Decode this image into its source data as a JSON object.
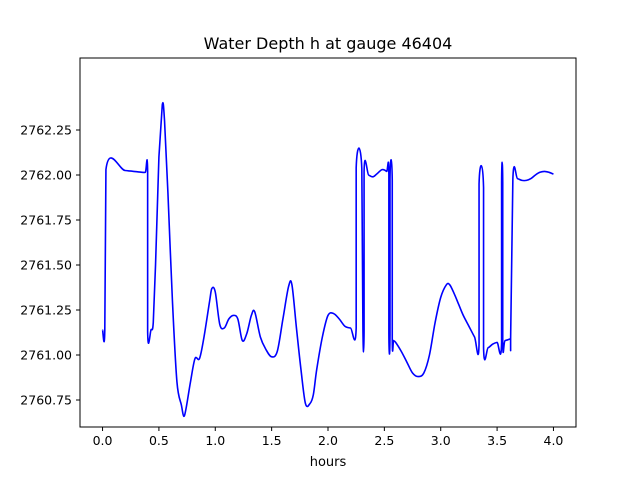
{
  "chart_data": {
    "type": "line",
    "title": "Water Depth h at gauge 46404",
    "xlabel": "hours",
    "ylabel": "",
    "xlim": [
      -0.2,
      4.2
    ],
    "ylim": [
      2760.6,
      2762.65
    ],
    "xticks": [
      0.0,
      0.5,
      1.0,
      1.5,
      2.0,
      2.5,
      3.0,
      3.5,
      4.0
    ],
    "xtick_labels": [
      "0.0",
      "0.5",
      "1.0",
      "1.5",
      "2.0",
      "2.5",
      "3.0",
      "3.5",
      "4.0"
    ],
    "yticks": [
      2760.75,
      2761.0,
      2761.25,
      2761.5,
      2761.75,
      2762.0,
      2762.25
    ],
    "ytick_labels": [
      "2760.75",
      "2761.00",
      "2761.25",
      "2761.50",
      "2761.75",
      "2762.00",
      "2762.25"
    ],
    "grid": false,
    "legend": "none",
    "series": [
      {
        "color": "#0000ff",
        "x": [
          0.0,
          0.02,
          0.03,
          0.2,
          0.35,
          0.38,
          0.4,
          0.4,
          0.43,
          0.45,
          0.47,
          0.5,
          0.53,
          0.55,
          0.58,
          0.62,
          0.66,
          0.7,
          0.72,
          0.74,
          0.78,
          0.82,
          0.86,
          0.9,
          0.95,
          0.97,
          1.0,
          1.04,
          1.08,
          1.12,
          1.16,
          1.2,
          1.24,
          1.28,
          1.32,
          1.35,
          1.4,
          1.45,
          1.5,
          1.55,
          1.6,
          1.65,
          1.68,
          1.72,
          1.76,
          1.8,
          1.84,
          1.87,
          1.9,
          1.95,
          2.0,
          2.05,
          2.1,
          2.15,
          2.2,
          2.25,
          2.25,
          2.3,
          2.31,
          2.32,
          2.32,
          2.36,
          2.4,
          2.44,
          2.48,
          2.52,
          2.54,
          2.54,
          2.55,
          2.55,
          2.57,
          2.57,
          2.58,
          2.58,
          2.6,
          2.65,
          2.7,
          2.75,
          2.8,
          2.85,
          2.9,
          2.95,
          3.0,
          3.05,
          3.08,
          3.12,
          3.16,
          3.2,
          3.25,
          3.3,
          3.34,
          3.34,
          3.38,
          3.38,
          3.42,
          3.46,
          3.5,
          3.54,
          3.54,
          3.55,
          3.55,
          3.57,
          3.62,
          3.62,
          3.64,
          3.68,
          3.72,
          3.76,
          3.8,
          3.84,
          3.88,
          3.92,
          3.96,
          4.0
        ],
        "y": [
          2761.14,
          2761.14,
          2762.03,
          2762.025,
          2762.015,
          2762.015,
          2762.02,
          2761.13,
          2761.14,
          2761.18,
          2761.5,
          2762.1,
          2762.39,
          2762.3,
          2761.9,
          2761.3,
          2760.85,
          2760.72,
          2760.66,
          2760.7,
          2760.85,
          2760.98,
          2760.98,
          2761.1,
          2761.3,
          2761.37,
          2761.35,
          2761.17,
          2761.15,
          2761.2,
          2761.22,
          2761.2,
          2761.08,
          2761.12,
          2761.22,
          2761.24,
          2761.1,
          2761.03,
          2760.99,
          2761.02,
          2761.2,
          2761.38,
          2761.39,
          2761.15,
          2760.92,
          2760.73,
          2760.73,
          2760.78,
          2760.92,
          2761.1,
          2761.22,
          2761.23,
          2761.2,
          2761.16,
          2761.15,
          2761.15,
          2762.04,
          2762.035,
          2761.13,
          2761.13,
          2762.02,
          2762.0,
          2761.99,
          2762.01,
          2762.03,
          2762.02,
          2762.0,
          2761.12,
          2761.11,
          2761.98,
          2761.97,
          2761.09,
          2761.08,
          2761.08,
          2761.07,
          2761.02,
          2760.96,
          2760.9,
          2760.88,
          2760.9,
          2761.0,
          2761.18,
          2761.32,
          2761.39,
          2761.39,
          2761.34,
          2761.28,
          2761.22,
          2761.16,
          2761.1,
          2761.06,
          2761.95,
          2761.93,
          2761.04,
          2761.04,
          2761.06,
          2761.07,
          2761.07,
          2761.96,
          2761.96,
          2761.08,
          2761.08,
          2761.09,
          2761.09,
          2761.98,
          2761.98,
          2761.97,
          2761.97,
          2761.98,
          2762.0,
          2762.015,
          2762.02,
          2762.015,
          2762.005
        ]
      }
    ]
  }
}
